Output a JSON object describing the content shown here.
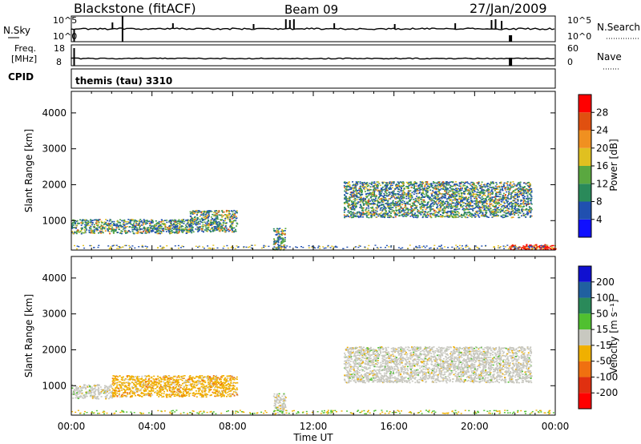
{
  "header": {
    "station": "Blackstone (fitACF)",
    "beam": "Beam 09",
    "date": "27/Jan/2009"
  },
  "strips": {
    "sky_label": "N.Sky",
    "sky_ticks": [
      "10^5",
      "10^0"
    ],
    "search_label": "N.Search",
    "search_ticks": [
      "10^5",
      "10^0"
    ],
    "freq_label_line1": "Freq.",
    "freq_label_line2": "[MHz]",
    "freq_ticks": [
      "18",
      "8"
    ],
    "nave_label": "Nave",
    "nave_ticks": [
      "60",
      "0"
    ],
    "cpid_label": "CPID",
    "cpid_text": "themis (tau) 3310"
  },
  "chart_data": [
    {
      "type": "heatmap",
      "panel": "power",
      "ylabel": "Slant Range [km]",
      "yticks": [
        1000,
        2000,
        3000,
        4000
      ],
      "ylim": [
        180,
        4600
      ],
      "xlim_hours": [
        0,
        24
      ],
      "colorbar": {
        "label": "Power [dB]",
        "ticks": [
          "4",
          "8",
          "12",
          "16",
          "20",
          "24",
          "28"
        ],
        "colors": [
          "#1010ff",
          "#2050b0",
          "#2a8a5a",
          "#5aa840",
          "#e0c020",
          "#f09020",
          "#e05010",
          "#ff0000"
        ]
      },
      "scatter_regions": [
        {
          "t": [
            0.0,
            6.0
          ],
          "range_km": [
            650,
            1050
          ],
          "dominant": "green/yellow"
        },
        {
          "t": [
            5.8,
            8.2
          ],
          "range_km": [
            700,
            1300
          ],
          "dominant": "green/blue"
        },
        {
          "t": [
            10.0,
            10.6
          ],
          "range_km": [
            200,
            800
          ],
          "dominant": "yellow/red"
        },
        {
          "t": [
            13.5,
            22.8
          ],
          "range_km": [
            1100,
            2100
          ],
          "dominant": "green/yellow"
        },
        {
          "t": [
            21.7,
            24.0
          ],
          "range_km": [
            200,
            350
          ],
          "dominant": "red/orange"
        }
      ]
    },
    {
      "type": "heatmap",
      "panel": "velocity",
      "ylabel": "Slant Range [km]",
      "xlabel": "Time UT",
      "yticks": [
        1000,
        2000,
        3000,
        4000
      ],
      "ylim": [
        180,
        4600
      ],
      "xlim_hours": [
        0,
        24
      ],
      "xticks": [
        "00:00",
        "04:00",
        "08:00",
        "12:00",
        "16:00",
        "20:00",
        "00:00"
      ],
      "colorbar": {
        "label": "Velocity [m s⁻¹]",
        "ticks": [
          "200",
          "100",
          "50",
          "15",
          "-15",
          "-50",
          "-100",
          "-200"
        ],
        "colors": [
          "#1010d0",
          "#2060a0",
          "#2a8a5a",
          "#50c030",
          "#c8c8c0",
          "#f0b000",
          "#f07010",
          "#e03010",
          "#ff0000"
        ]
      },
      "scatter_regions": [
        {
          "t": [
            0.0,
            2.0
          ],
          "range_km": [
            650,
            1050
          ],
          "dominant": "grey"
        },
        {
          "t": [
            2.0,
            8.2
          ],
          "range_km": [
            700,
            1300
          ],
          "dominant": "orange"
        },
        {
          "t": [
            10.0,
            10.6
          ],
          "range_km": [
            200,
            800
          ],
          "dominant": "grey"
        },
        {
          "t": [
            13.5,
            22.8
          ],
          "range_km": [
            1100,
            2100
          ],
          "dominant": "grey"
        }
      ]
    }
  ]
}
